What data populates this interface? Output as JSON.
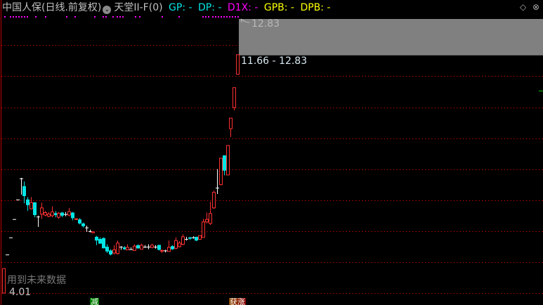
{
  "header": {
    "title": "中国人保(日线.前复权)",
    "indicator_name": "天堂II-F(0)",
    "indicators": [
      {
        "label": "GP: -",
        "color": "#00e5e5"
      },
      {
        "label": "DP: -",
        "color": "#00e5e5"
      },
      {
        "label": "D1X: -",
        "color": "#ff00ff"
      },
      {
        "label": "GPB: -",
        "color": "#ffff00"
      },
      {
        "label": "DPB: -",
        "color": "#ffff00"
      }
    ],
    "dropdown_icon": "chevron-down-circle-icon",
    "right_icons": [
      "diamond-icon",
      "close-circle-icon"
    ]
  },
  "price_labels": {
    "max": "12.83",
    "range": "11.66 - 12.83",
    "min": "4.01"
  },
  "bottom_text": "用到未来数据",
  "signal_tags": [
    {
      "label": "减",
      "color": "#008000"
    },
    {
      "label": "获涨",
      "color": "#8b2a00"
    }
  ],
  "colors": {
    "up": "#ff3030",
    "down": "#00e5e5",
    "doji": "#ffffff",
    "grid": "#b00000",
    "signal_dots": "#ff00ff",
    "highlight": "#808080"
  },
  "chart_data": {
    "type": "candlestick",
    "ylim": [
      4.01,
      12.83
    ],
    "candles_ohlc": [
      [
        4.01,
        4.8,
        4.8,
        4.01
      ],
      [
        5.25,
        5.25,
        5.25,
        5.25
      ],
      [
        5.8,
        5.8,
        5.8,
        5.8
      ],
      [
        6.39,
        6.39,
        6.39,
        6.39
      ],
      [
        7.02,
        7.02,
        7.02,
        7.02
      ],
      [
        7.7,
        7.7,
        7.72,
        7.18
      ],
      [
        7.45,
        7.13,
        7.6,
        6.9
      ],
      [
        7.02,
        6.84,
        7.1,
        6.66
      ],
      [
        6.72,
        6.92,
        7.1,
        6.7
      ],
      [
        6.93,
        6.52,
        6.93,
        6.45
      ],
      [
        6.47,
        6.47,
        6.5,
        6.14
      ],
      [
        6.55,
        6.75,
        6.92,
        6.4
      ],
      [
        6.52,
        6.6,
        6.65,
        6.48
      ],
      [
        6.48,
        6.55,
        6.62,
        6.45
      ],
      [
        6.5,
        6.62,
        6.8,
        6.45
      ],
      [
        6.58,
        6.52,
        6.65,
        6.45
      ],
      [
        6.45,
        6.58,
        6.62,
        6.4
      ],
      [
        6.6,
        6.5,
        6.62,
        6.45
      ],
      [
        6.55,
        6.55,
        6.62,
        6.48
      ],
      [
        6.52,
        6.63,
        6.75,
        6.48
      ],
      [
        6.6,
        6.42,
        6.62,
        6.35
      ],
      [
        6.38,
        6.4,
        6.42,
        6.36
      ],
      [
        6.38,
        6.25,
        6.42,
        6.22
      ],
      [
        6.25,
        6.16,
        6.28,
        6.12
      ],
      [
        6.12,
        6.12,
        6.18,
        5.98
      ],
      [
        6.0,
        6.0,
        6.05,
        5.96
      ],
      [
        5.95,
        5.98,
        5.98,
        5.95
      ],
      [
        5.82,
        5.7,
        5.85,
        5.55
      ],
      [
        5.75,
        5.6,
        5.8,
        5.6
      ],
      [
        5.78,
        5.45,
        5.8,
        5.45
      ],
      [
        5.5,
        5.35,
        5.58,
        5.3
      ],
      [
        5.38,
        5.25,
        5.42,
        5.22
      ],
      [
        5.3,
        5.4,
        5.55,
        5.25
      ],
      [
        5.28,
        5.62,
        5.7,
        5.25
      ],
      [
        5.5,
        5.5,
        5.52,
        5.4
      ],
      [
        5.48,
        5.42,
        5.52,
        5.4
      ],
      [
        5.4,
        5.48,
        5.58,
        5.4
      ],
      [
        5.42,
        5.42,
        5.48,
        5.4
      ],
      [
        5.38,
        5.52,
        5.58,
        5.38
      ],
      [
        5.55,
        5.45,
        5.58,
        5.43
      ],
      [
        5.42,
        5.55,
        5.6,
        5.42
      ],
      [
        5.5,
        5.5,
        5.55,
        5.46
      ],
      [
        5.5,
        5.5,
        5.58,
        5.42
      ],
      [
        5.48,
        5.55,
        5.6,
        5.45
      ],
      [
        5.5,
        5.5,
        5.55,
        5.44
      ],
      [
        5.56,
        5.4,
        5.56,
        5.38
      ],
      [
        5.36,
        5.38,
        5.42,
        5.3
      ],
      [
        5.38,
        5.38,
        5.4,
        5.32
      ],
      [
        5.35,
        5.48,
        5.7,
        5.35
      ],
      [
        5.52,
        5.42,
        5.55,
        5.4
      ],
      [
        5.45,
        5.7,
        5.8,
        5.42
      ],
      [
        5.5,
        5.62,
        5.68,
        5.48
      ],
      [
        5.58,
        5.82,
        5.9,
        5.55
      ],
      [
        5.75,
        5.75,
        5.82,
        5.7
      ],
      [
        5.8,
        5.76,
        5.82,
        5.72
      ],
      [
        5.8,
        5.8,
        5.84,
        5.76
      ],
      [
        5.82,
        5.7,
        5.82,
        5.68
      ],
      [
        5.74,
        5.86,
        5.86,
        5.74
      ],
      [
        5.8,
        6.3,
        6.4,
        5.8
      ],
      [
        6.3,
        6.38,
        6.6,
        6.25
      ],
      [
        6.25,
        6.57,
        6.95,
        6.2
      ],
      [
        6.75,
        7.25,
        7.3,
        6.72
      ],
      [
        7.4,
        7.4,
        8.0,
        7.2
      ],
      [
        7.5,
        8.35,
        8.35,
        7.48
      ],
      [
        8.44,
        7.95,
        8.44,
        7.8
      ],
      [
        7.81,
        8.76,
        8.76,
        7.8
      ],
      [
        9.3,
        9.64,
        9.64,
        9.03
      ],
      [
        9.98,
        10.62,
        10.62,
        9.89
      ],
      [
        11.05,
        11.68,
        11.68,
        11.05
      ]
    ],
    "highlight_range": [
      11.66,
      12.83
    ]
  }
}
